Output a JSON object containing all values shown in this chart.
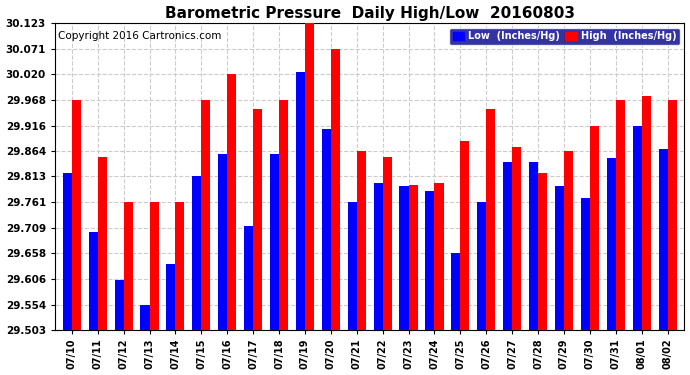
{
  "title": "Barometric Pressure  Daily High/Low  20160803",
  "copyright": "Copyright 2016 Cartronics.com",
  "legend_low": "Low  (Inches/Hg)",
  "legend_high": "High  (Inches/Hg)",
  "categories": [
    "07/10",
    "07/11",
    "07/12",
    "07/13",
    "07/14",
    "07/15",
    "07/16",
    "07/17",
    "07/18",
    "07/19",
    "07/20",
    "07/21",
    "07/22",
    "07/23",
    "07/24",
    "07/25",
    "07/26",
    "07/27",
    "07/28",
    "07/29",
    "07/30",
    "07/31",
    "08/01",
    "08/02"
  ],
  "low_values": [
    29.82,
    29.7,
    29.603,
    29.554,
    29.635,
    29.813,
    29.858,
    29.712,
    29.858,
    30.025,
    29.908,
    29.762,
    29.8,
    29.793,
    29.783,
    29.658,
    29.762,
    29.843,
    29.843,
    29.793,
    29.77,
    29.85,
    29.916,
    29.868
  ],
  "high_values": [
    29.968,
    29.852,
    29.761,
    29.761,
    29.761,
    29.968,
    30.02,
    29.95,
    29.968,
    30.123,
    30.071,
    29.864,
    29.852,
    29.795,
    29.8,
    29.885,
    29.95,
    29.873,
    29.82,
    29.864,
    29.916,
    29.968,
    29.975,
    29.968
  ],
  "low_color": "#0000ff",
  "high_color": "#ff0000",
  "ylim_min": 29.503,
  "ylim_max": 30.123,
  "yticks": [
    29.503,
    29.554,
    29.606,
    29.658,
    29.709,
    29.761,
    29.813,
    29.864,
    29.916,
    29.968,
    30.02,
    30.071,
    30.123
  ],
  "bg_color": "#ffffff",
  "grid_color": "#cccccc",
  "title_fontsize": 11,
  "copyright_fontsize": 7.5,
  "bar_width": 0.35
}
